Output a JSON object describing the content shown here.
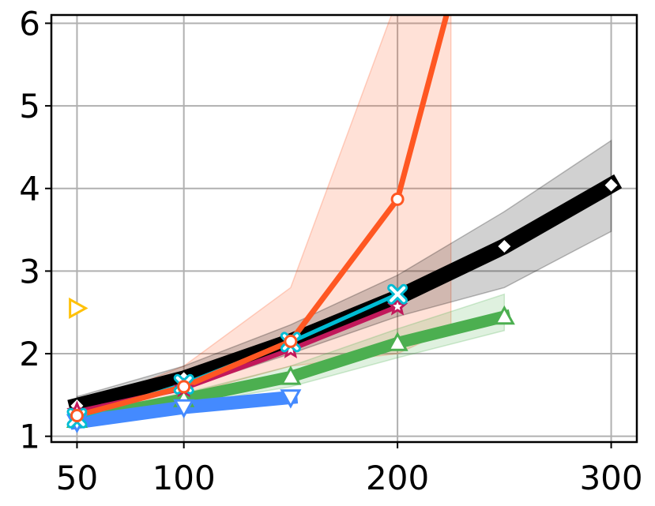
{
  "chart_data": {
    "type": "line",
    "title": "",
    "xlabel": "",
    "ylabel": "",
    "xlim": [
      38,
      312
    ],
    "ylim": [
      0.93,
      6.1
    ],
    "xticks": [
      50,
      100,
      200,
      300
    ],
    "yticks": [
      1,
      2,
      3,
      4,
      5,
      6
    ],
    "x_tick_labels": [
      "50",
      "100",
      "200",
      "300"
    ],
    "y_tick_labels": [
      "1",
      "2",
      "3",
      "4",
      "5",
      "6"
    ],
    "grid": true,
    "legend": "none",
    "series": [
      {
        "color": "#ff5722",
        "marker": "circle-open",
        "x": [
          50,
          100,
          150,
          200,
          225
        ],
        "y": [
          1.25,
          1.6,
          2.15,
          3.87,
          6.3
        ],
        "band_low": [
          1.2,
          1.5,
          1.85,
          2.0,
          2.3
        ],
        "band_high": [
          1.35,
          1.85,
          2.8,
          6.3,
          6.3
        ]
      },
      {
        "color": "#000000",
        "marker": "diamond",
        "x": [
          50,
          100,
          150,
          200,
          250,
          300
        ],
        "y": [
          1.37,
          1.7,
          2.15,
          2.68,
          3.3,
          4.04
        ],
        "band_low": [
          1.3,
          1.58,
          2.0,
          2.45,
          2.8,
          3.48
        ],
        "band_high": [
          1.48,
          1.85,
          2.35,
          2.95,
          3.72,
          4.58
        ]
      },
      {
        "color": "#4caf50",
        "marker": "triangle-up-open",
        "x": [
          50,
          100,
          150,
          200,
          250
        ],
        "y": [
          1.2,
          1.45,
          1.72,
          2.13,
          2.45
        ],
        "band_low": [
          1.15,
          1.38,
          1.6,
          1.95,
          2.28
        ],
        "band_high": [
          1.26,
          1.52,
          1.85,
          2.3,
          2.72
        ]
      },
      {
        "color": "#448aff",
        "marker": "triangle-down-open",
        "x": [
          50,
          100,
          150
        ],
        "y": [
          1.17,
          1.35,
          1.47
        ]
      },
      {
        "color": "#c2185b",
        "marker": "star",
        "x": [
          50,
          100,
          150,
          200
        ],
        "y": [
          1.3,
          1.58,
          2.05,
          2.57
        ]
      },
      {
        "color": "#00bcd4",
        "marker": "x-thick",
        "x": [
          50,
          100,
          150,
          200
        ],
        "y": [
          1.22,
          1.63,
          2.14,
          2.72
        ]
      },
      {
        "color": "#ffc107",
        "marker": "triangle-right-open",
        "x": [
          50
        ],
        "y": [
          2.55
        ]
      }
    ]
  }
}
